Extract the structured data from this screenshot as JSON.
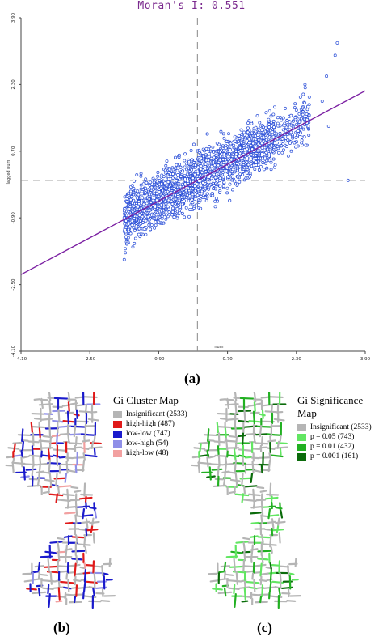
{
  "figure": {
    "panel_a_label": "(a)",
    "panel_b_label": "(b)",
    "panel_c_label": "(c)"
  },
  "chart_data": {
    "type": "scatter",
    "title": "Moran's I: 0.551",
    "xlabel": "num",
    "ylabel": "lagged num",
    "x_ticks": [
      "-4.10",
      "-2.50",
      "-0.90",
      "0.70",
      "2.30",
      "3.90"
    ],
    "y_ticks": [
      "3.90",
      "2.30",
      "0.70",
      "-0.90",
      "-2.50",
      "-4.10"
    ],
    "xlim": [
      -4.1,
      3.9
    ],
    "ylim": [
      -4.1,
      3.9
    ],
    "regression_slope": 0.551,
    "point_color": "#2b4fd8",
    "line_color": "#7b1fa2",
    "quadrant_line_color": "#888888",
    "sample_points": [
      [
        -1.7,
        -1.9
      ],
      [
        -1.5,
        -1.6
      ],
      [
        -1.2,
        -1.3
      ],
      [
        -0.9,
        -1.0
      ],
      [
        -0.6,
        -0.5
      ],
      [
        -0.3,
        -0.4
      ],
      [
        0.0,
        0.1
      ],
      [
        0.3,
        0.2
      ],
      [
        0.6,
        0.5
      ],
      [
        0.9,
        0.8
      ],
      [
        1.2,
        0.9
      ],
      [
        1.5,
        1.2
      ],
      [
        2.0,
        1.5
      ],
      [
        2.6,
        2.0
      ],
      [
        3.0,
        2.5
      ]
    ]
  },
  "gi_cluster_map": {
    "title": "Gi Cluster Map",
    "entries": [
      {
        "label": "Insignificant",
        "count": "(2533)",
        "color": "#b5b5b5"
      },
      {
        "label": "high-high",
        "count": "(487)",
        "color": "#e01919"
      },
      {
        "label": "low-low",
        "count": "(747)",
        "color": "#1a1acc"
      },
      {
        "label": "low-high",
        "count": "(54)",
        "color": "#8f8fe8"
      },
      {
        "label": "high-low",
        "count": "(48)",
        "color": "#f2a0a0"
      }
    ]
  },
  "gi_significance_map": {
    "title": "Gi Significance Map",
    "entries": [
      {
        "label": "Insignificant",
        "count": "(2533)",
        "color": "#b5b5b5"
      },
      {
        "label": "p = 0.05",
        "count": "(743)",
        "color": "#62e662"
      },
      {
        "label": "p = 0.01",
        "count": "(432)",
        "color": "#22b022"
      },
      {
        "label": "p = 0.001",
        "count": "(161)",
        "color": "#0b6b0b"
      }
    ]
  }
}
